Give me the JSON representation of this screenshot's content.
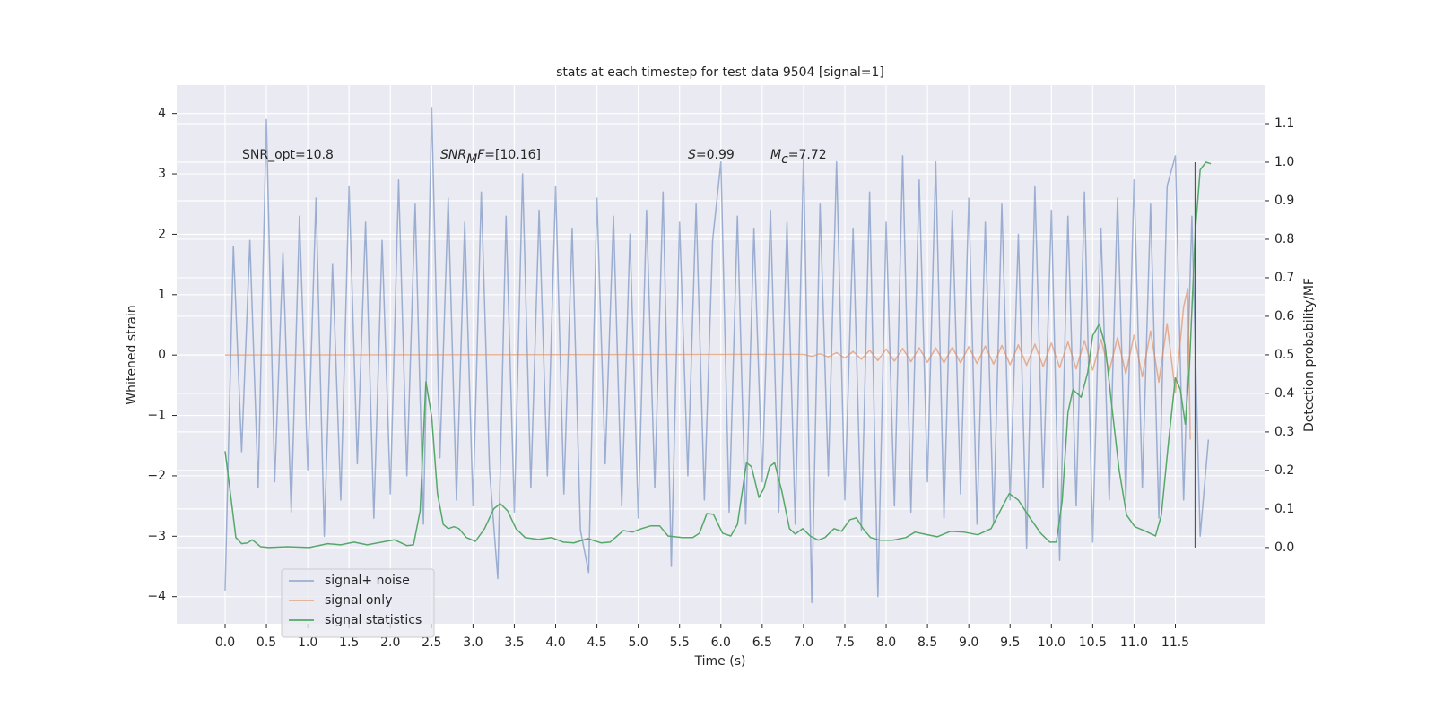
{
  "chart_data": {
    "type": "line",
    "title": "stats at each timestep for test data 9504 [signal=1]",
    "xlabel": "Time (s)",
    "ylabel": "Whitened strain",
    "y2label": "Detection probability/MF",
    "xlim": [
      -0.586,
      12.58
    ],
    "ylim": [
      -4.45,
      4.47
    ],
    "y2lim": [
      -0.198,
      1.2
    ],
    "xticks": [
      {
        "value": 0,
        "label": "0.0"
      },
      {
        "value": 0.5,
        "label": "0.5"
      },
      {
        "value": 1,
        "label": "1.0"
      },
      {
        "value": 1.5,
        "label": "1.5"
      },
      {
        "value": 2,
        "label": "2.0"
      },
      {
        "value": 2.5,
        "label": "2.5"
      },
      {
        "value": 3,
        "label": "3.0"
      },
      {
        "value": 3.5,
        "label": "3.5"
      },
      {
        "value": 4,
        "label": "4.0"
      },
      {
        "value": 4.5,
        "label": "4.5"
      },
      {
        "value": 5,
        "label": "5.0"
      },
      {
        "value": 5.5,
        "label": "5.5"
      },
      {
        "value": 6,
        "label": "6.0"
      },
      {
        "value": 6.5,
        "label": "6.5"
      },
      {
        "value": 7,
        "label": "7.0"
      },
      {
        "value": 7.5,
        "label": "7.5"
      },
      {
        "value": 8,
        "label": "8.0"
      },
      {
        "value": 8.5,
        "label": "8.5"
      },
      {
        "value": 9,
        "label": "9.0"
      },
      {
        "value": 9.5,
        "label": "9.5"
      },
      {
        "value": 10,
        "label": "10.0"
      },
      {
        "value": 10.5,
        "label": "10.5"
      },
      {
        "value": 11,
        "label": "11.0"
      },
      {
        "value": 11.5,
        "label": "11.5"
      }
    ],
    "yticks": [
      {
        "value": -4,
        "label": "−4"
      },
      {
        "value": -3,
        "label": "−3"
      },
      {
        "value": -2,
        "label": "−2"
      },
      {
        "value": -1,
        "label": "−1"
      },
      0,
      1,
      2,
      3,
      4
    ],
    "y2ticks": [
      {
        "value": 0,
        "label": "0.0"
      },
      {
        "value": 0.1,
        "label": "0.1"
      },
      {
        "value": 0.2,
        "label": "0.2"
      },
      {
        "value": 0.3,
        "label": "0.3"
      },
      {
        "value": 0.4,
        "label": "0.4"
      },
      {
        "value": 0.5,
        "label": "0.5"
      },
      {
        "value": 0.6,
        "label": "0.6"
      },
      {
        "value": 0.7,
        "label": "0.7"
      },
      {
        "value": 0.8,
        "label": "0.8"
      },
      {
        "value": 0.9,
        "label": "0.9"
      },
      {
        "value": 1,
        "label": "1.0"
      },
      {
        "value": 1.1,
        "label": "1.1"
      }
    ],
    "grid": true,
    "legend": "lower left",
    "annotations": [
      [
        {
          "text": "SNR_opt=10.8"
        }
      ],
      [
        {
          "text": "SNR",
          "italic": true
        },
        {
          "text": "M",
          "italic": true,
          "sub": true
        },
        {
          "text": "F",
          "italic": true
        },
        {
          "text": "=[10.16]"
        }
      ],
      [
        {
          "text": "S",
          "italic": true
        },
        {
          "text": "=0.99"
        }
      ],
      [
        {
          "text": "M",
          "italic": true
        },
        {
          "text": "c",
          "italic": true,
          "sub": true
        },
        {
          "text": "=7.72"
        }
      ]
    ],
    "vline": {
      "x": 11.74,
      "y": [
        0,
        1
      ],
      "color": "#555555"
    },
    "series": [
      {
        "name": "signal+ noise",
        "color": "#4c72b0",
        "opacity": 0.5,
        "x": [
          0.0,
          0.1,
          0.2,
          0.3,
          0.4,
          0.5,
          0.6,
          0.7,
          0.8,
          0.9,
          1.0,
          1.1,
          1.2,
          1.3,
          1.4,
          1.5,
          1.6,
          1.7,
          1.8,
          1.9,
          2.0,
          2.1,
          2.2,
          2.3,
          2.4,
          2.5,
          2.6,
          2.7,
          2.8,
          2.9,
          3.0,
          3.1,
          3.2,
          3.3,
          3.4,
          3.5,
          3.6,
          3.7,
          3.8,
          3.9,
          4.0,
          4.1,
          4.2,
          4.3,
          4.4,
          4.5,
          4.6,
          4.7,
          4.8,
          4.9,
          5.0,
          5.1,
          5.2,
          5.3,
          5.4,
          5.5,
          5.6,
          5.7,
          5.8,
          5.9,
          6.0,
          6.1,
          6.2,
          6.3,
          6.4,
          6.5,
          6.6,
          6.7,
          6.8,
          6.9,
          7.0,
          7.1,
          7.2,
          7.3,
          7.4,
          7.5,
          7.6,
          7.7,
          7.8,
          7.9,
          8.0,
          8.1,
          8.2,
          8.3,
          8.4,
          8.5,
          8.6,
          8.7,
          8.8,
          8.9,
          9.0,
          9.1,
          9.2,
          9.3,
          9.4,
          9.5,
          9.6,
          9.7,
          9.8,
          9.9,
          10.0,
          10.1,
          10.2,
          10.3,
          10.4,
          10.5,
          10.6,
          10.7,
          10.8,
          10.9,
          11.0,
          11.1,
          11.2,
          11.3,
          11.4,
          11.5,
          11.6,
          11.7,
          11.8,
          11.9
        ],
        "values": [
          -3.9,
          1.8,
          -1.6,
          1.9,
          -2.2,
          3.9,
          -2.1,
          1.7,
          -2.6,
          2.3,
          -1.9,
          2.6,
          -3.0,
          1.5,
          -2.4,
          2.8,
          -1.8,
          2.2,
          -2.7,
          1.9,
          -2.3,
          2.9,
          -2.0,
          2.5,
          -2.8,
          4.1,
          -1.7,
          2.6,
          -2.4,
          2.2,
          -2.5,
          2.7,
          -1.9,
          -3.7,
          2.3,
          -2.6,
          3.0,
          -2.2,
          2.4,
          -2.0,
          2.8,
          -2.3,
          2.1,
          -2.9,
          -3.6,
          2.6,
          -1.8,
          2.3,
          -2.5,
          2.0,
          -2.7,
          2.4,
          -2.2,
          2.7,
          -3.5,
          2.2,
          -2.0,
          2.5,
          -2.4,
          1.9,
          3.2,
          -2.6,
          2.3,
          -2.8,
          2.1,
          -2.1,
          2.4,
          -2.6,
          2.2,
          -2.8,
          3.3,
          -4.1,
          2.5,
          -2.0,
          3.2,
          -2.4,
          2.1,
          -2.9,
          2.7,
          -4.0,
          2.2,
          -2.5,
          3.3,
          -2.6,
          2.9,
          -2.1,
          3.2,
          -2.7,
          2.4,
          -2.3,
          2.6,
          -2.8,
          2.2,
          -2.8,
          2.5,
          -2.4,
          2.0,
          -3.2,
          2.8,
          -2.2,
          2.4,
          -3.4,
          2.3,
          -2.5,
          2.7,
          -3.1,
          2.1,
          -2.4,
          2.6,
          -2.4,
          2.9,
          -2.2,
          2.5,
          -2.7,
          2.8,
          3.3,
          -2.4,
          2.3,
          -3.0,
          -1.4
        ]
      },
      {
        "name": "signal only",
        "color": "#dd8452",
        "opacity": 0.6,
        "x": [
          0.0,
          7.0,
          7.1,
          7.2,
          7.3,
          7.4,
          7.5,
          7.6,
          7.7,
          7.8,
          7.9,
          8.0,
          8.1,
          8.2,
          8.3,
          8.4,
          8.5,
          8.6,
          8.7,
          8.8,
          8.9,
          9.0,
          9.1,
          9.2,
          9.3,
          9.4,
          9.5,
          9.6,
          9.7,
          9.8,
          9.9,
          10.0,
          10.1,
          10.2,
          10.3,
          10.4,
          10.5,
          10.6,
          10.7,
          10.8,
          10.9,
          11.0,
          11.1,
          11.2,
          11.3,
          11.4,
          11.5,
          11.6,
          11.65,
          11.68
        ],
        "values": [
          0,
          0.01,
          -0.02,
          0.02,
          -0.03,
          0.04,
          -0.05,
          0.06,
          -0.07,
          0.08,
          -0.09,
          0.1,
          -0.1,
          0.11,
          -0.11,
          0.12,
          -0.12,
          0.12,
          -0.13,
          0.13,
          -0.13,
          0.14,
          -0.14,
          0.15,
          -0.15,
          0.16,
          -0.16,
          0.17,
          -0.17,
          0.18,
          -0.19,
          0.2,
          -0.21,
          0.22,
          -0.23,
          0.24,
          -0.25,
          0.26,
          -0.27,
          0.29,
          -0.31,
          0.33,
          -0.36,
          0.4,
          -0.45,
          0.52,
          -0.62,
          0.8,
          1.1,
          -1.4
        ]
      },
      {
        "name": "signal statistics",
        "color": "#55a868",
        "opacity": 1,
        "axis": "y2",
        "x": [
          0.0,
          0.05,
          0.13,
          0.2,
          0.27,
          0.33,
          0.43,
          0.53,
          0.75,
          1.02,
          1.24,
          1.4,
          1.56,
          1.72,
          2.05,
          2.2,
          2.28,
          2.36,
          2.43,
          2.5,
          2.57,
          2.64,
          2.7,
          2.77,
          2.83,
          2.92,
          3.03,
          3.14,
          3.25,
          3.33,
          3.42,
          3.52,
          3.63,
          3.79,
          3.95,
          4.09,
          4.22,
          4.39,
          4.55,
          4.66,
          4.82,
          4.93,
          5.04,
          5.15,
          5.26,
          5.36,
          5.53,
          5.66,
          5.74,
          5.83,
          5.91,
          6.02,
          6.12,
          6.2,
          6.31,
          6.37,
          6.46,
          6.52,
          6.59,
          6.65,
          6.74,
          6.83,
          6.9,
          6.99,
          7.08,
          7.18,
          7.26,
          7.37,
          7.46,
          7.56,
          7.64,
          7.72,
          7.81,
          7.92,
          8.08,
          8.24,
          8.35,
          8.46,
          8.62,
          8.78,
          8.94,
          9.11,
          9.27,
          9.38,
          9.49,
          9.6,
          9.74,
          9.87,
          9.98,
          10.06,
          10.13,
          10.2,
          10.26,
          10.36,
          10.44,
          10.5,
          10.58,
          10.65,
          10.74,
          10.82,
          10.91,
          11.01,
          11.12,
          11.26,
          11.33,
          11.42,
          11.5,
          11.56,
          11.62,
          11.67,
          11.74,
          11.8,
          11.87,
          11.93
        ],
        "values": [
          0.25,
          0.165,
          0.026,
          0.01,
          0.012,
          0.02,
          0.002,
          0.0,
          0.002,
          0.0,
          0.01,
          0.007,
          0.014,
          0.007,
          0.02,
          0.005,
          0.007,
          0.095,
          0.43,
          0.34,
          0.14,
          0.06,
          0.049,
          0.054,
          0.049,
          0.026,
          0.016,
          0.049,
          0.1,
          0.114,
          0.095,
          0.049,
          0.026,
          0.021,
          0.026,
          0.014,
          0.012,
          0.023,
          0.012,
          0.014,
          0.044,
          0.04,
          0.049,
          0.056,
          0.056,
          0.03,
          0.026,
          0.026,
          0.037,
          0.088,
          0.086,
          0.037,
          0.03,
          0.06,
          0.22,
          0.21,
          0.13,
          0.153,
          0.21,
          0.22,
          0.144,
          0.049,
          0.035,
          0.049,
          0.03,
          0.019,
          0.026,
          0.049,
          0.042,
          0.072,
          0.077,
          0.049,
          0.026,
          0.019,
          0.019,
          0.026,
          0.04,
          0.035,
          0.028,
          0.042,
          0.04,
          0.033,
          0.049,
          0.095,
          0.14,
          0.123,
          0.077,
          0.037,
          0.014,
          0.014,
          0.12,
          0.35,
          0.41,
          0.39,
          0.455,
          0.55,
          0.58,
          0.525,
          0.35,
          0.2,
          0.084,
          0.054,
          0.044,
          0.03,
          0.084,
          0.28,
          0.44,
          0.41,
          0.32,
          0.467,
          0.816,
          0.98,
          1.0,
          0.996
        ]
      }
    ]
  }
}
